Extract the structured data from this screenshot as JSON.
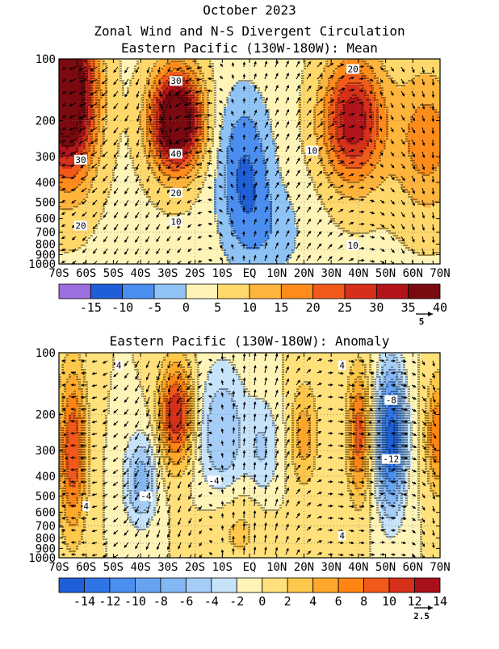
{
  "figure": {
    "title_line1": "October 2023",
    "title_line2": "Zonal Wind and N-S Divergent Circulation"
  },
  "chart_data": [
    {
      "type": "heatmap",
      "title": "Eastern Pacific (130W-180W): Mean",
      "x_ticks": [
        "70S",
        "60S",
        "50S",
        "40S",
        "30S",
        "20S",
        "10S",
        "EQ",
        "10N",
        "20N",
        "30N",
        "40N",
        "50N",
        "60N",
        "70N"
      ],
      "x_values": [
        -70,
        -60,
        -50,
        -40,
        -30,
        -20,
        -10,
        0,
        10,
        20,
        30,
        40,
        50,
        60,
        70
      ],
      "y_ticks": [
        "100",
        "200",
        "300",
        "400",
        "500",
        "600",
        "700",
        "800",
        "900",
        "1000"
      ],
      "y_values": [
        100,
        200,
        300,
        400,
        500,
        600,
        700,
        800,
        900,
        1000
      ],
      "y_scale": "log",
      "y_reversed": true,
      "xlim": [
        -70,
        70
      ],
      "ylim": [
        1000,
        100
      ],
      "grid": true,
      "contour_interval": 5,
      "contour_labels": [
        {
          "x": -27,
          "y": 128,
          "v": "30"
        },
        {
          "x": -27,
          "y": 290,
          "v": "40"
        },
        {
          "x": -27,
          "y": 450,
          "v": "20"
        },
        {
          "x": -27,
          "y": 620,
          "v": "10"
        },
        {
          "x": -62,
          "y": 310,
          "v": "30"
        },
        {
          "x": -62,
          "y": 650,
          "v": "20"
        },
        {
          "x": 38,
          "y": 112,
          "v": "20"
        },
        {
          "x": 23,
          "y": 280,
          "v": "10"
        },
        {
          "x": 38,
          "y": 810,
          "v": "10"
        }
      ],
      "colorbar": {
        "labels": [
          "-15",
          "-10",
          "-5",
          "0",
          "5",
          "10",
          "15",
          "20",
          "25",
          "30",
          "35",
          "40"
        ],
        "colors": [
          "#9b6fe0",
          "#1e5fd9",
          "#4a8ef0",
          "#8fc3f5",
          "#fff4b8",
          "#ffd86b",
          "#ffb43c",
          "#ff8c1a",
          "#f25a1a",
          "#d6301a",
          "#b3131a",
          "#7a0a10"
        ]
      },
      "vector_reference": "5",
      "series": [
        {
          "lat": -65,
          "p": 150,
          "u": 45
        },
        {
          "lat": -60,
          "p": 300,
          "u": 32
        },
        {
          "lat": -60,
          "p": 600,
          "u": 20
        },
        {
          "lat": -27,
          "p": 200,
          "u": 44
        },
        {
          "lat": -27,
          "p": 450,
          "u": 20
        },
        {
          "lat": -5,
          "p": 300,
          "u": -12
        },
        {
          "lat": 0,
          "p": 700,
          "u": -2
        },
        {
          "lat": 35,
          "p": 200,
          "u": 28
        },
        {
          "lat": 20,
          "p": 200,
          "u": 8
        },
        {
          "lat": 55,
          "p": 800,
          "u": 5
        }
      ]
    },
    {
      "type": "heatmap",
      "title": "Eastern Pacific (130W-180W): Anomaly",
      "x_ticks": [
        "70S",
        "60S",
        "50S",
        "40S",
        "30S",
        "20S",
        "10S",
        "EQ",
        "10N",
        "20N",
        "30N",
        "40N",
        "50N",
        "60N",
        "70N"
      ],
      "x_values": [
        -70,
        -60,
        -50,
        -40,
        -30,
        -20,
        -10,
        0,
        10,
        20,
        30,
        40,
        50,
        60,
        70
      ],
      "y_ticks": [
        "100",
        "200",
        "300",
        "400",
        "500",
        "600",
        "700",
        "800",
        "900",
        "1000"
      ],
      "y_values": [
        100,
        200,
        300,
        400,
        500,
        600,
        700,
        800,
        900,
        1000
      ],
      "y_scale": "log",
      "y_reversed": true,
      "xlim": [
        -70,
        70
      ],
      "ylim": [
        1000,
        100
      ],
      "grid": true,
      "contour_interval": 2,
      "contour_labels": [
        {
          "x": -38,
          "y": 500,
          "v": "-4"
        },
        {
          "x": -13,
          "y": 420,
          "v": "-4"
        },
        {
          "x": 34,
          "y": 115,
          "v": "4"
        },
        {
          "x": 52,
          "y": 170,
          "v": "-8"
        },
        {
          "x": 52,
          "y": 330,
          "v": "-12"
        },
        {
          "x": -60,
          "y": 560,
          "v": "4"
        },
        {
          "x": 34,
          "y": 780,
          "v": "4"
        },
        {
          "x": -48,
          "y": 115,
          "v": "4"
        }
      ],
      "colorbar": {
        "labels": [
          "-14",
          "-12",
          "-10",
          "-8",
          "-6",
          "-4",
          "-2",
          "0",
          "2",
          "4",
          "6",
          "8",
          "10",
          "12",
          "14"
        ],
        "colors": [
          "#1e5fd9",
          "#2f74e6",
          "#4a8ef0",
          "#66a4f2",
          "#84b8f4",
          "#a5cdf7",
          "#c6e3fa",
          "#fff4b8",
          "#ffe07a",
          "#ffc84a",
          "#ffa82a",
          "#ff8414",
          "#f2581a",
          "#d6301a",
          "#a8101a"
        ]
      },
      "vector_reference": "2.5",
      "series": [
        {
          "lat": -65,
          "p": 300,
          "u": 8
        },
        {
          "lat": -27,
          "p": 200,
          "u": 12
        },
        {
          "lat": -38,
          "p": 400,
          "u": -6
        },
        {
          "lat": -12,
          "p": 200,
          "u": -4
        },
        {
          "lat": 5,
          "p": 250,
          "u": -6
        },
        {
          "lat": 20,
          "p": 250,
          "u": 4
        },
        {
          "lat": 40,
          "p": 250,
          "u": 8
        },
        {
          "lat": 52,
          "p": 250,
          "u": -12
        },
        {
          "lat": 68,
          "p": 250,
          "u": 6
        }
      ]
    }
  ]
}
